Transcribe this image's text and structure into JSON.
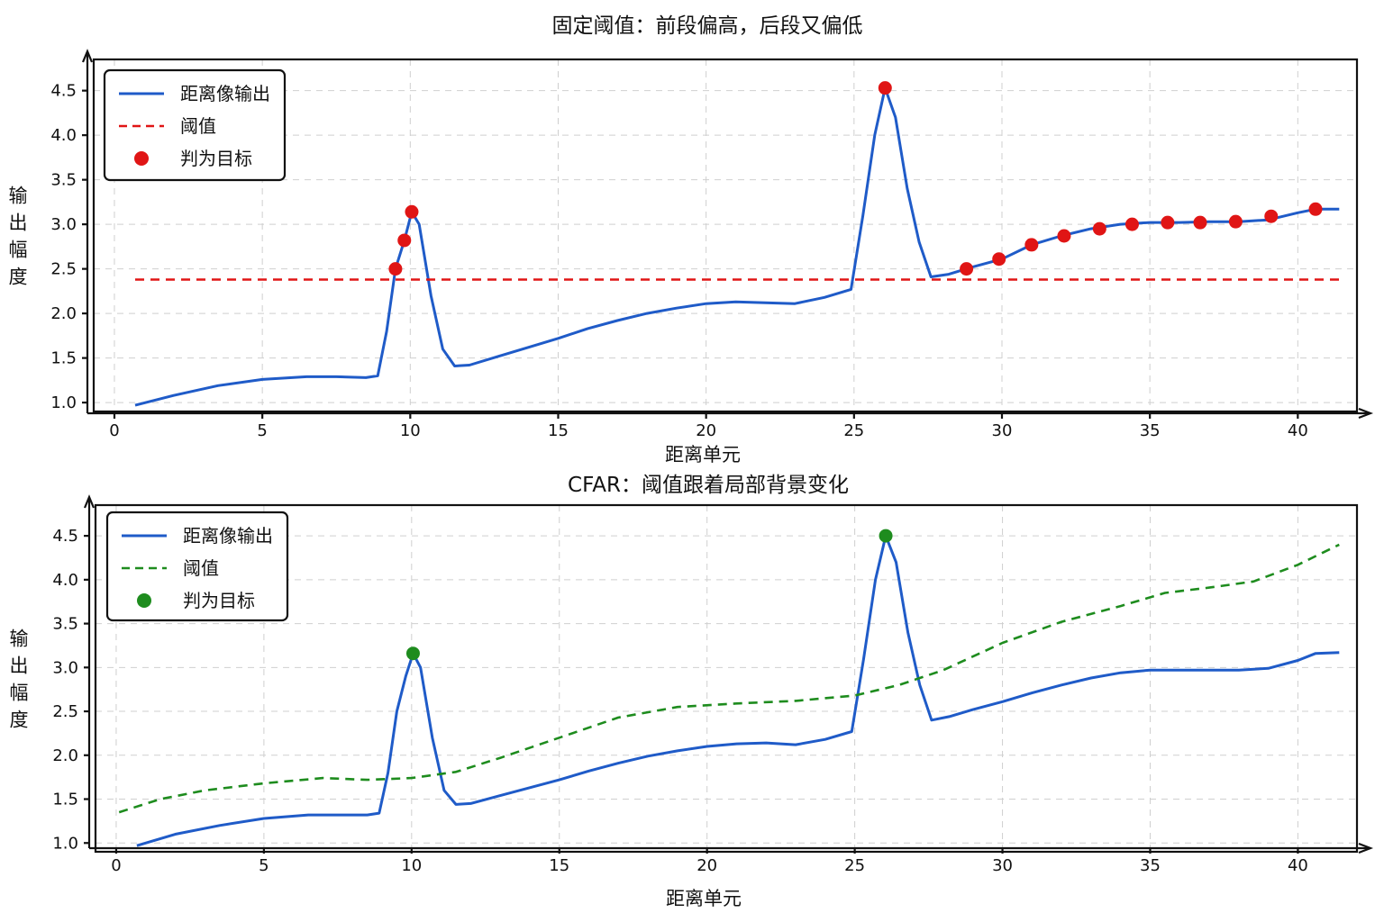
{
  "chart_data": [
    {
      "type": "line",
      "title": "固定阈值：前段偏高，后段又偏低",
      "xlabel": "距离单元",
      "ylabel": "输出幅度",
      "xlim": [
        -0.7,
        42
      ],
      "ylim": [
        0.9,
        4.85
      ],
      "xticks": [
        0,
        5,
        10,
        15,
        20,
        25,
        30,
        35,
        40
      ],
      "yticks": [
        1.0,
        1.5,
        2.0,
        2.5,
        3.0,
        3.5,
        4.0,
        4.5
      ],
      "ytick_labels": [
        "1.0",
        "1.5",
        "2.0",
        "2.5",
        "3.0",
        "3.5",
        "4.0",
        "4.5"
      ],
      "grid": true,
      "legend_position": "top-left",
      "legend": [
        "距离像输出",
        "阈值",
        "判为目标"
      ],
      "colors": {
        "signal": "#1f5bc8",
        "threshold": "#e01515",
        "target": "#e01515"
      },
      "series": [
        {
          "name": "距离像输出",
          "style": "solid",
          "x": [
            0.7,
            2,
            3.5,
            5,
            6.5,
            7.5,
            8.5,
            8.9,
            9.2,
            9.5,
            9.8,
            10.05,
            10.3,
            10.7,
            11.1,
            11.5,
            12,
            13,
            14,
            15,
            16,
            17,
            18,
            19,
            20,
            21,
            22,
            23,
            24,
            24.9,
            25.3,
            25.7,
            26.05,
            26.4,
            26.8,
            27.2,
            27.6,
            28.2,
            29,
            30,
            31,
            32,
            33,
            34,
            35,
            36,
            37,
            38,
            39,
            40,
            40.6,
            41.4
          ],
          "y": [
            0.97,
            1.08,
            1.19,
            1.26,
            1.29,
            1.29,
            1.28,
            1.3,
            1.8,
            2.5,
            2.82,
            3.14,
            3.0,
            2.2,
            1.6,
            1.41,
            1.42,
            1.52,
            1.62,
            1.72,
            1.83,
            1.92,
            2.0,
            2.06,
            2.11,
            2.13,
            2.12,
            2.11,
            2.18,
            2.27,
            3.1,
            4.0,
            4.53,
            4.2,
            3.4,
            2.8,
            2.41,
            2.44,
            2.52,
            2.61,
            2.77,
            2.87,
            2.95,
            3.0,
            3.02,
            3.02,
            3.03,
            3.03,
            3.05,
            3.13,
            3.17,
            3.17
          ]
        },
        {
          "name": "阈值",
          "style": "dashed",
          "x": [
            0.7,
            41.4
          ],
          "y": [
            2.38,
            2.38
          ]
        }
      ],
      "targets": {
        "name": "判为目标",
        "x": [
          9.5,
          9.8,
          10.05,
          26.05,
          28.8,
          29.9,
          31.0,
          32.1,
          33.3,
          34.4,
          35.6,
          36.7,
          37.9,
          39.1,
          40.6
        ],
        "y": [
          2.5,
          2.82,
          3.14,
          4.53,
          2.5,
          2.61,
          2.77,
          2.87,
          2.95,
          3.0,
          3.02,
          3.02,
          3.03,
          3.09,
          3.17
        ]
      }
    },
    {
      "type": "line",
      "title": "CFAR：阈值跟着局部背景变化",
      "xlabel": "距离单元",
      "ylabel": "输出幅度",
      "xlim": [
        -0.7,
        42
      ],
      "ylim": [
        0.9,
        4.85
      ],
      "xticks": [
        0,
        5,
        10,
        15,
        20,
        25,
        30,
        35,
        40
      ],
      "yticks": [
        1.0,
        1.5,
        2.0,
        2.5,
        3.0,
        3.5,
        4.0,
        4.5
      ],
      "ytick_labels": [
        "1.0",
        "1.5",
        "2.0",
        "2.5",
        "3.0",
        "3.5",
        "4.0",
        "4.5"
      ],
      "grid": true,
      "legend_position": "top-left",
      "legend": [
        "距离像输出",
        "阈值",
        "判为目标"
      ],
      "colors": {
        "signal": "#1f5bc8",
        "threshold": "#1e8c1e",
        "target": "#1e8c1e"
      },
      "series": [
        {
          "name": "距离像输出",
          "style": "solid",
          "x": [
            0.7,
            2,
            3.5,
            5,
            6.5,
            7.5,
            8.5,
            8.9,
            9.2,
            9.5,
            9.8,
            10.05,
            10.3,
            10.7,
            11.1,
            11.5,
            12,
            13,
            14,
            15,
            16,
            17,
            18,
            19,
            20,
            21,
            22,
            23,
            24,
            24.9,
            25.3,
            25.7,
            26.05,
            26.4,
            26.8,
            27.2,
            27.6,
            28.2,
            29,
            30,
            31,
            32,
            33,
            34,
            35,
            36,
            37,
            38,
            39,
            40,
            40.6,
            41.4
          ],
          "y": [
            0.97,
            1.1,
            1.2,
            1.28,
            1.32,
            1.32,
            1.32,
            1.34,
            1.8,
            2.5,
            2.9,
            3.16,
            3.0,
            2.2,
            1.6,
            1.44,
            1.45,
            1.54,
            1.63,
            1.72,
            1.82,
            1.91,
            1.99,
            2.05,
            2.1,
            2.13,
            2.14,
            2.12,
            2.18,
            2.27,
            3.1,
            4.0,
            4.5,
            4.2,
            3.4,
            2.8,
            2.4,
            2.44,
            2.52,
            2.61,
            2.71,
            2.8,
            2.88,
            2.94,
            2.97,
            2.97,
            2.97,
            2.97,
            2.99,
            3.08,
            3.16,
            3.17
          ]
        },
        {
          "name": "阈值",
          "style": "dashed",
          "x": [
            0.1,
            1.5,
            3,
            5,
            7,
            8.5,
            10,
            11.5,
            13,
            15,
            17,
            19,
            21,
            23,
            25,
            26.5,
            28,
            30,
            32,
            34,
            35.5,
            37,
            38.5,
            40,
            41.4
          ],
          "y": [
            1.35,
            1.5,
            1.6,
            1.68,
            1.74,
            1.72,
            1.74,
            1.81,
            1.97,
            2.2,
            2.43,
            2.55,
            2.59,
            2.62,
            2.68,
            2.8,
            2.97,
            3.28,
            3.52,
            3.7,
            3.85,
            3.91,
            3.98,
            4.17,
            4.4
          ]
        }
      ],
      "targets": {
        "name": "判为目标",
        "x": [
          10.05,
          26.05
        ],
        "y": [
          3.16,
          4.5
        ]
      }
    }
  ]
}
